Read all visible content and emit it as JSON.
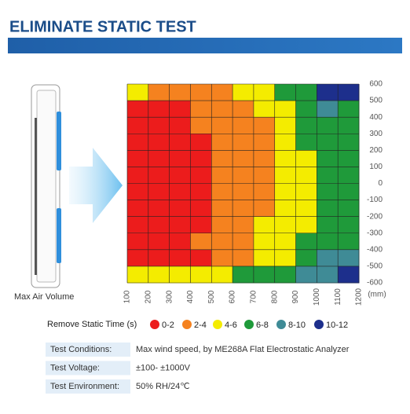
{
  "header": {
    "title": "ELIMINATE STATIC TEST",
    "device_label": "Max Air Volume"
  },
  "chart_data": {
    "type": "contour",
    "x_unit": "(mm)",
    "legend_title": "Remove Static Time (s)",
    "xlim": [
      100,
      1200
    ],
    "ylim": [
      -600,
      600
    ],
    "xticks": [
      100,
      200,
      300,
      400,
      500,
      600,
      700,
      800,
      900,
      1000,
      1100,
      1200
    ],
    "yticks": [
      600,
      500,
      400,
      300,
      200,
      100,
      0,
      -100,
      -200,
      -300,
      -400,
      -500,
      -600
    ],
    "grid": true,
    "bins": [
      0,
      2,
      4,
      6,
      8,
      10,
      12
    ],
    "levels": [
      {
        "label": "0-2",
        "color": "#ec1c1c"
      },
      {
        "label": "2-4",
        "color": "#f5821f"
      },
      {
        "label": "4-6",
        "color": "#f4ec00"
      },
      {
        "label": "6-8",
        "color": "#1f9a3a"
      },
      {
        "label": "8-10",
        "color": "#3f8b96"
      },
      {
        "label": "10-12",
        "color": "#1d2f8c"
      }
    ],
    "z": [
      [
        5,
        3,
        3,
        3,
        3,
        5,
        5,
        7,
        7,
        11,
        11
      ],
      [
        1,
        1,
        1,
        3,
        3,
        3,
        5,
        5,
        7,
        9,
        7
      ],
      [
        1,
        1,
        1,
        3,
        3,
        3,
        3,
        5,
        7,
        7,
        7
      ],
      [
        1,
        1,
        1,
        1,
        3,
        3,
        3,
        5,
        7,
        7,
        7
      ],
      [
        1,
        1,
        1,
        1,
        3,
        3,
        3,
        5,
        5,
        7,
        7
      ],
      [
        1,
        1,
        1,
        1,
        3,
        3,
        3,
        5,
        5,
        7,
        7
      ],
      [
        1,
        1,
        1,
        1,
        3,
        3,
        3,
        5,
        5,
        7,
        7
      ],
      [
        1,
        1,
        1,
        1,
        3,
        3,
        3,
        5,
        5,
        7,
        7
      ],
      [
        1,
        1,
        1,
        1,
        3,
        3,
        5,
        5,
        5,
        7,
        7
      ],
      [
        1,
        1,
        1,
        3,
        3,
        3,
        5,
        5,
        7,
        7,
        7
      ],
      [
        1,
        1,
        1,
        1,
        3,
        3,
        5,
        5,
        7,
        9,
        9
      ],
      [
        5,
        5,
        5,
        5,
        5,
        7,
        7,
        7,
        9,
        9,
        11
      ]
    ]
  },
  "info": [
    {
      "label": "Test Conditions:",
      "value": "Max wind speed, by ME268A Flat Electrostatic Analyzer"
    },
    {
      "label": "Test Voltage:",
      "value": "±100- ±1000V"
    },
    {
      "label": "Test Environment:",
      "value": "50% RH/24℃"
    }
  ]
}
